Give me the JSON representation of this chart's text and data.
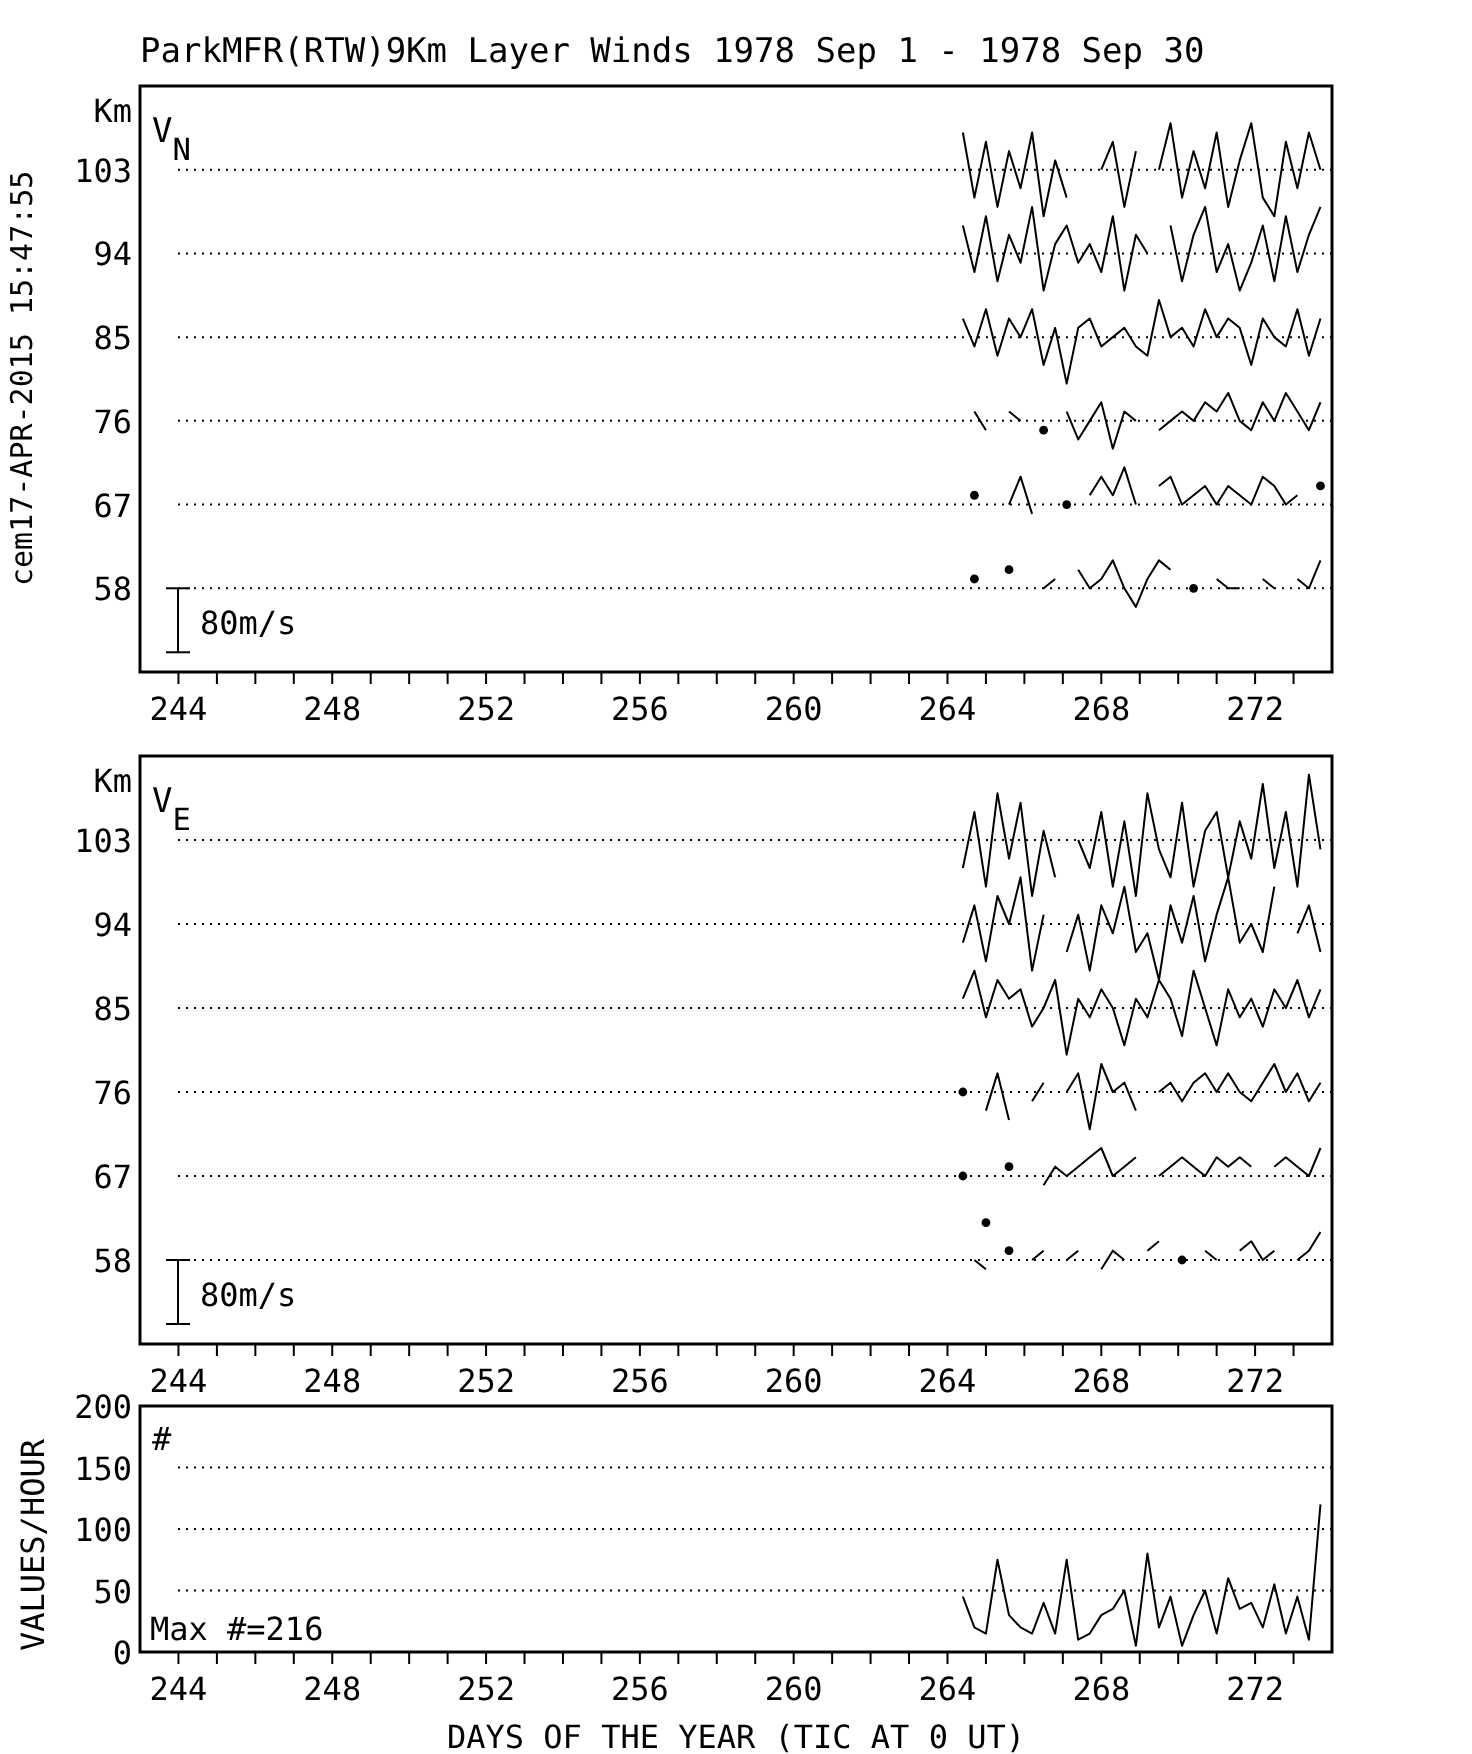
{
  "chart_data": [
    {
      "type": "line",
      "title": "ParkMFR(RTW)9Km Layer Winds 1978 Sep  1 - 1978 Sep 30",
      "ylabel": "Km",
      "annotations": [
        "V$_{N}$",
        "80m/s",
        "cem17-APR-2015 15:47:55"
      ],
      "grid": "y",
      "marker": "none",
      "line_style": "solid",
      "x": [
        264.4,
        264.7,
        265.0,
        265.3,
        265.6,
        265.9,
        266.2,
        266.5,
        266.8,
        267.1,
        267.4,
        267.7,
        268.0,
        268.3,
        268.6,
        268.9,
        269.2,
        269.5,
        269.8,
        270.1,
        270.4,
        270.7,
        271.0,
        271.3,
        271.6,
        271.9,
        272.2,
        272.5,
        272.8,
        273.1,
        273.4,
        273.7
      ],
      "xlim": [
        243,
        274
      ],
      "xticks": [
        244,
        {
          "value": 245,
          "label": null
        },
        {
          "value": 246,
          "label": null
        },
        {
          "value": 247,
          "label": null
        },
        248,
        {
          "value": 249,
          "label": null
        },
        {
          "value": 250,
          "label": null
        },
        {
          "value": 251,
          "label": null
        },
        252,
        {
          "value": 253,
          "label": null
        },
        {
          "value": 254,
          "label": null
        },
        {
          "value": 255,
          "label": null
        },
        256,
        {
          "value": 257,
          "label": null
        },
        {
          "value": 258,
          "label": null
        },
        {
          "value": 259,
          "label": null
        },
        260,
        {
          "value": 261,
          "label": null
        },
        {
          "value": 262,
          "label": null
        },
        {
          "value": 263,
          "label": null
        },
        264,
        {
          "value": 265,
          "label": null
        },
        {
          "value": 266,
          "label": null
        },
        {
          "value": 267,
          "label": null
        },
        268,
        {
          "value": 269,
          "label": null
        },
        {
          "value": 270,
          "label": null
        },
        {
          "value": 271,
          "label": null
        },
        272,
        {
          "value": 273,
          "label": null
        }
      ],
      "ylim": [
        49,
        112
      ],
      "yticks": [
        58,
        67,
        76,
        85,
        94,
        103
      ],
      "series": [
        {
          "color": "#000000",
          "values": [
            107,
            100,
            106,
            99,
            105,
            101,
            107,
            98,
            104,
            100,
            null,
            null,
            103,
            106,
            99,
            105,
            null,
            103,
            108,
            100,
            105,
            101,
            107,
            99,
            104,
            108,
            100,
            98,
            106,
            101,
            107,
            103
          ]
        },
        {
          "color": "#000000",
          "values": [
            97,
            92,
            98,
            91,
            96,
            93,
            99,
            90,
            95,
            97,
            93,
            95,
            92,
            98,
            90,
            96,
            94,
            null,
            97,
            91,
            96,
            99,
            92,
            95,
            90,
            93,
            97,
            91,
            98,
            92,
            96,
            99
          ]
        },
        {
          "color": "#000000",
          "values": [
            87,
            84,
            88,
            83,
            87,
            85,
            88,
            82,
            86,
            80,
            86,
            87,
            84,
            85,
            86,
            84,
            83,
            89,
            85,
            86,
            84,
            88,
            85,
            87,
            86,
            82,
            87,
            85,
            84,
            88,
            83,
            87
          ]
        },
        {
          "color": "#000000",
          "values": [
            null,
            77,
            75,
            null,
            77,
            76,
            null,
            75,
            null,
            77,
            74,
            76,
            78,
            73,
            77,
            76,
            null,
            75,
            76,
            77,
            76,
            78,
            77,
            79,
            76,
            75,
            78,
            76,
            79,
            77,
            75,
            78
          ]
        },
        {
          "color": "#000000",
          "values": [
            null,
            68,
            null,
            null,
            67,
            70,
            66,
            null,
            null,
            67,
            null,
            68,
            70,
            68,
            71,
            67,
            null,
            69,
            70,
            67,
            68,
            69,
            67,
            69,
            68,
            67,
            70,
            69,
            67,
            68,
            null,
            69
          ]
        },
        {
          "color": "#000000",
          "values": [
            null,
            59,
            null,
            null,
            60,
            null,
            null,
            58,
            59,
            null,
            60,
            58,
            59,
            61,
            58,
            56,
            59,
            61,
            60,
            null,
            58,
            null,
            59,
            58,
            58,
            null,
            59,
            58,
            null,
            59,
            58,
            61
          ]
        }
      ]
    },
    {
      "type": "line",
      "ylabel": "Km",
      "annotations": [
        "V$_{E}$",
        "80m/s"
      ],
      "grid": "y",
      "marker": "none",
      "line_style": "solid",
      "x": [
        264.4,
        264.7,
        265.0,
        265.3,
        265.6,
        265.9,
        266.2,
        266.5,
        266.8,
        267.1,
        267.4,
        267.7,
        268.0,
        268.3,
        268.6,
        268.9,
        269.2,
        269.5,
        269.8,
        270.1,
        270.4,
        270.7,
        271.0,
        271.3,
        271.6,
        271.9,
        272.2,
        272.5,
        272.8,
        273.1,
        273.4,
        273.7
      ],
      "xlim": [
        243,
        274
      ],
      "xticks": [
        244,
        {
          "value": 245,
          "label": null
        },
        {
          "value": 246,
          "label": null
        },
        {
          "value": 247,
          "label": null
        },
        248,
        {
          "value": 249,
          "label": null
        },
        {
          "value": 250,
          "label": null
        },
        {
          "value": 251,
          "label": null
        },
        252,
        {
          "value": 253,
          "label": null
        },
        {
          "value": 254,
          "label": null
        },
        {
          "value": 255,
          "label": null
        },
        256,
        {
          "value": 257,
          "label": null
        },
        {
          "value": 258,
          "label": null
        },
        {
          "value": 259,
          "label": null
        },
        260,
        {
          "value": 261,
          "label": null
        },
        {
          "value": 262,
          "label": null
        },
        {
          "value": 263,
          "label": null
        },
        264,
        {
          "value": 265,
          "label": null
        },
        {
          "value": 266,
          "label": null
        },
        {
          "value": 267,
          "label": null
        },
        268,
        {
          "value": 269,
          "label": null
        },
        {
          "value": 270,
          "label": null
        },
        {
          "value": 271,
          "label": null
        },
        272,
        {
          "value": 273,
          "label": null
        }
      ],
      "ylim": [
        49,
        112
      ],
      "yticks": [
        58,
        67,
        76,
        85,
        94,
        103
      ],
      "series": [
        {
          "color": "#000000",
          "values": [
            100,
            106,
            98,
            108,
            101,
            107,
            97,
            104,
            99,
            null,
            103,
            100,
            106,
            98,
            105,
            97,
            108,
            102,
            99,
            107,
            98,
            104,
            106,
            99,
            105,
            101,
            109,
            100,
            106,
            98,
            110,
            102
          ]
        },
        {
          "color": "#000000",
          "values": [
            92,
            96,
            90,
            97,
            94,
            99,
            89,
            95,
            null,
            91,
            95,
            89,
            96,
            93,
            98,
            91,
            93,
            88,
            96,
            92,
            97,
            90,
            95,
            99,
            92,
            94,
            91,
            98,
            null,
            93,
            96,
            91
          ]
        },
        {
          "color": "#000000",
          "values": [
            86,
            89,
            84,
            88,
            86,
            87,
            83,
            85,
            88,
            80,
            86,
            84,
            87,
            85,
            81,
            86,
            84,
            88,
            86,
            82,
            89,
            85,
            81,
            87,
            84,
            86,
            83,
            87,
            85,
            88,
            84,
            87
          ]
        },
        {
          "color": "#000000",
          "values": [
            76,
            null,
            74,
            78,
            73,
            null,
            75,
            77,
            null,
            76,
            78,
            72,
            79,
            76,
            77,
            74,
            null,
            76,
            77,
            75,
            77,
            78,
            76,
            78,
            76,
            75,
            77,
            79,
            76,
            78,
            75,
            77
          ]
        },
        {
          "color": "#000000",
          "values": [
            67,
            null,
            62,
            null,
            68,
            null,
            null,
            66,
            68,
            67,
            68,
            69,
            70,
            67,
            68,
            69,
            null,
            67,
            68,
            69,
            68,
            67,
            69,
            68,
            69,
            68,
            null,
            68,
            69,
            68,
            67,
            70
          ]
        },
        {
          "color": "#000000",
          "values": [
            null,
            58,
            57,
            null,
            59,
            null,
            58,
            59,
            null,
            58,
            59,
            null,
            57,
            59,
            58,
            null,
            59,
            60,
            null,
            58,
            null,
            59,
            58,
            null,
            59,
            60,
            58,
            59,
            null,
            58,
            59,
            61
          ]
        }
      ]
    },
    {
      "type": "line",
      "xlabel": "DAYS OF THE YEAR (TIC AT 0 UT)",
      "ylabel": "VALUES/HOUR",
      "annotations": [
        "#",
        "Max #=216"
      ],
      "grid": "y",
      "marker": "none",
      "line_style": "solid",
      "x": [
        264.4,
        264.7,
        265.0,
        265.3,
        265.6,
        265.9,
        266.2,
        266.5,
        266.8,
        267.1,
        267.4,
        267.7,
        268.0,
        268.3,
        268.6,
        268.9,
        269.2,
        269.5,
        269.8,
        270.1,
        270.4,
        270.7,
        271.0,
        271.3,
        271.6,
        271.9,
        272.2,
        272.5,
        272.8,
        273.1,
        273.4,
        273.7
      ],
      "xlim": [
        243,
        274
      ],
      "xticks": [
        244,
        {
          "value": 245,
          "label": null
        },
        {
          "value": 246,
          "label": null
        },
        {
          "value": 247,
          "label": null
        },
        248,
        {
          "value": 249,
          "label": null
        },
        {
          "value": 250,
          "label": null
        },
        {
          "value": 251,
          "label": null
        },
        252,
        {
          "value": 253,
          "label": null
        },
        {
          "value": 254,
          "label": null
        },
        {
          "value": 255,
          "label": null
        },
        256,
        {
          "value": 257,
          "label": null
        },
        {
          "value": 258,
          "label": null
        },
        {
          "value": 259,
          "label": null
        },
        260,
        {
          "value": 261,
          "label": null
        },
        {
          "value": 262,
          "label": null
        },
        {
          "value": 263,
          "label": null
        },
        264,
        {
          "value": 265,
          "label": null
        },
        {
          "value": 266,
          "label": null
        },
        {
          "value": 267,
          "label": null
        },
        268,
        {
          "value": 269,
          "label": null
        },
        {
          "value": 270,
          "label": null
        },
        {
          "value": 271,
          "label": null
        },
        272,
        {
          "value": 273,
          "label": null
        }
      ],
      "ylim": [
        0,
        200
      ],
      "yticks": [
        0,
        50,
        100,
        150,
        200
      ],
      "series": [
        {
          "color": "#000000",
          "values": [
            45,
            20,
            15,
            75,
            30,
            20,
            15,
            40,
            15,
            75,
            10,
            15,
            30,
            35,
            50,
            5,
            80,
            20,
            45,
            5,
            30,
            50,
            15,
            60,
            35,
            40,
            20,
            55,
            15,
            45,
            10,
            120
          ]
        }
      ]
    }
  ]
}
